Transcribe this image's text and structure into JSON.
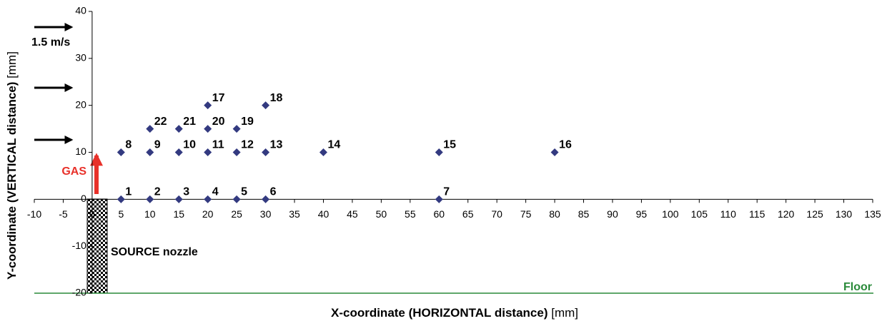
{
  "chart_data": {
    "type": "scatter",
    "xlabel": "X-coordinate (HORIZONTAL distance)",
    "xunit": "[mm]",
    "ylabel": "Y-coordinate (VERTICAL distance)",
    "yunit": "[mm]",
    "annotations": {
      "velocity": "1.5 m/s",
      "gas": "GAS",
      "source": "SOURCE nozzle",
      "floor": "Floor"
    },
    "xlim": [
      -10,
      135
    ],
    "ylim": [
      -20,
      40
    ],
    "xticks": [
      -10,
      -5,
      0,
      5,
      10,
      15,
      20,
      25,
      30,
      35,
      40,
      45,
      50,
      55,
      60,
      65,
      70,
      75,
      80,
      85,
      90,
      95,
      100,
      105,
      110,
      115,
      120,
      125,
      130,
      135
    ],
    "yticks": [
      -20,
      -10,
      0,
      10,
      20,
      30,
      40
    ],
    "series": [
      {
        "color": "#333a80",
        "x": [
          5,
          10,
          15,
          20,
          25,
          30,
          60,
          5,
          10,
          15,
          20,
          25,
          30,
          40,
          60,
          80,
          20,
          30,
          25,
          20,
          15,
          10
        ],
        "values": [
          0,
          0,
          0,
          0,
          0,
          0,
          0,
          10,
          10,
          10,
          10,
          10,
          10,
          10,
          10,
          10,
          20,
          20,
          15,
          15,
          15,
          15
        ],
        "point_labels": [
          "1",
          "2",
          "3",
          "4",
          "5",
          "6",
          "7",
          "8",
          "9",
          "10",
          "11",
          "12",
          "13",
          "14",
          "15",
          "16",
          "17",
          "18",
          "19",
          "20",
          "21",
          "22"
        ]
      }
    ]
  }
}
